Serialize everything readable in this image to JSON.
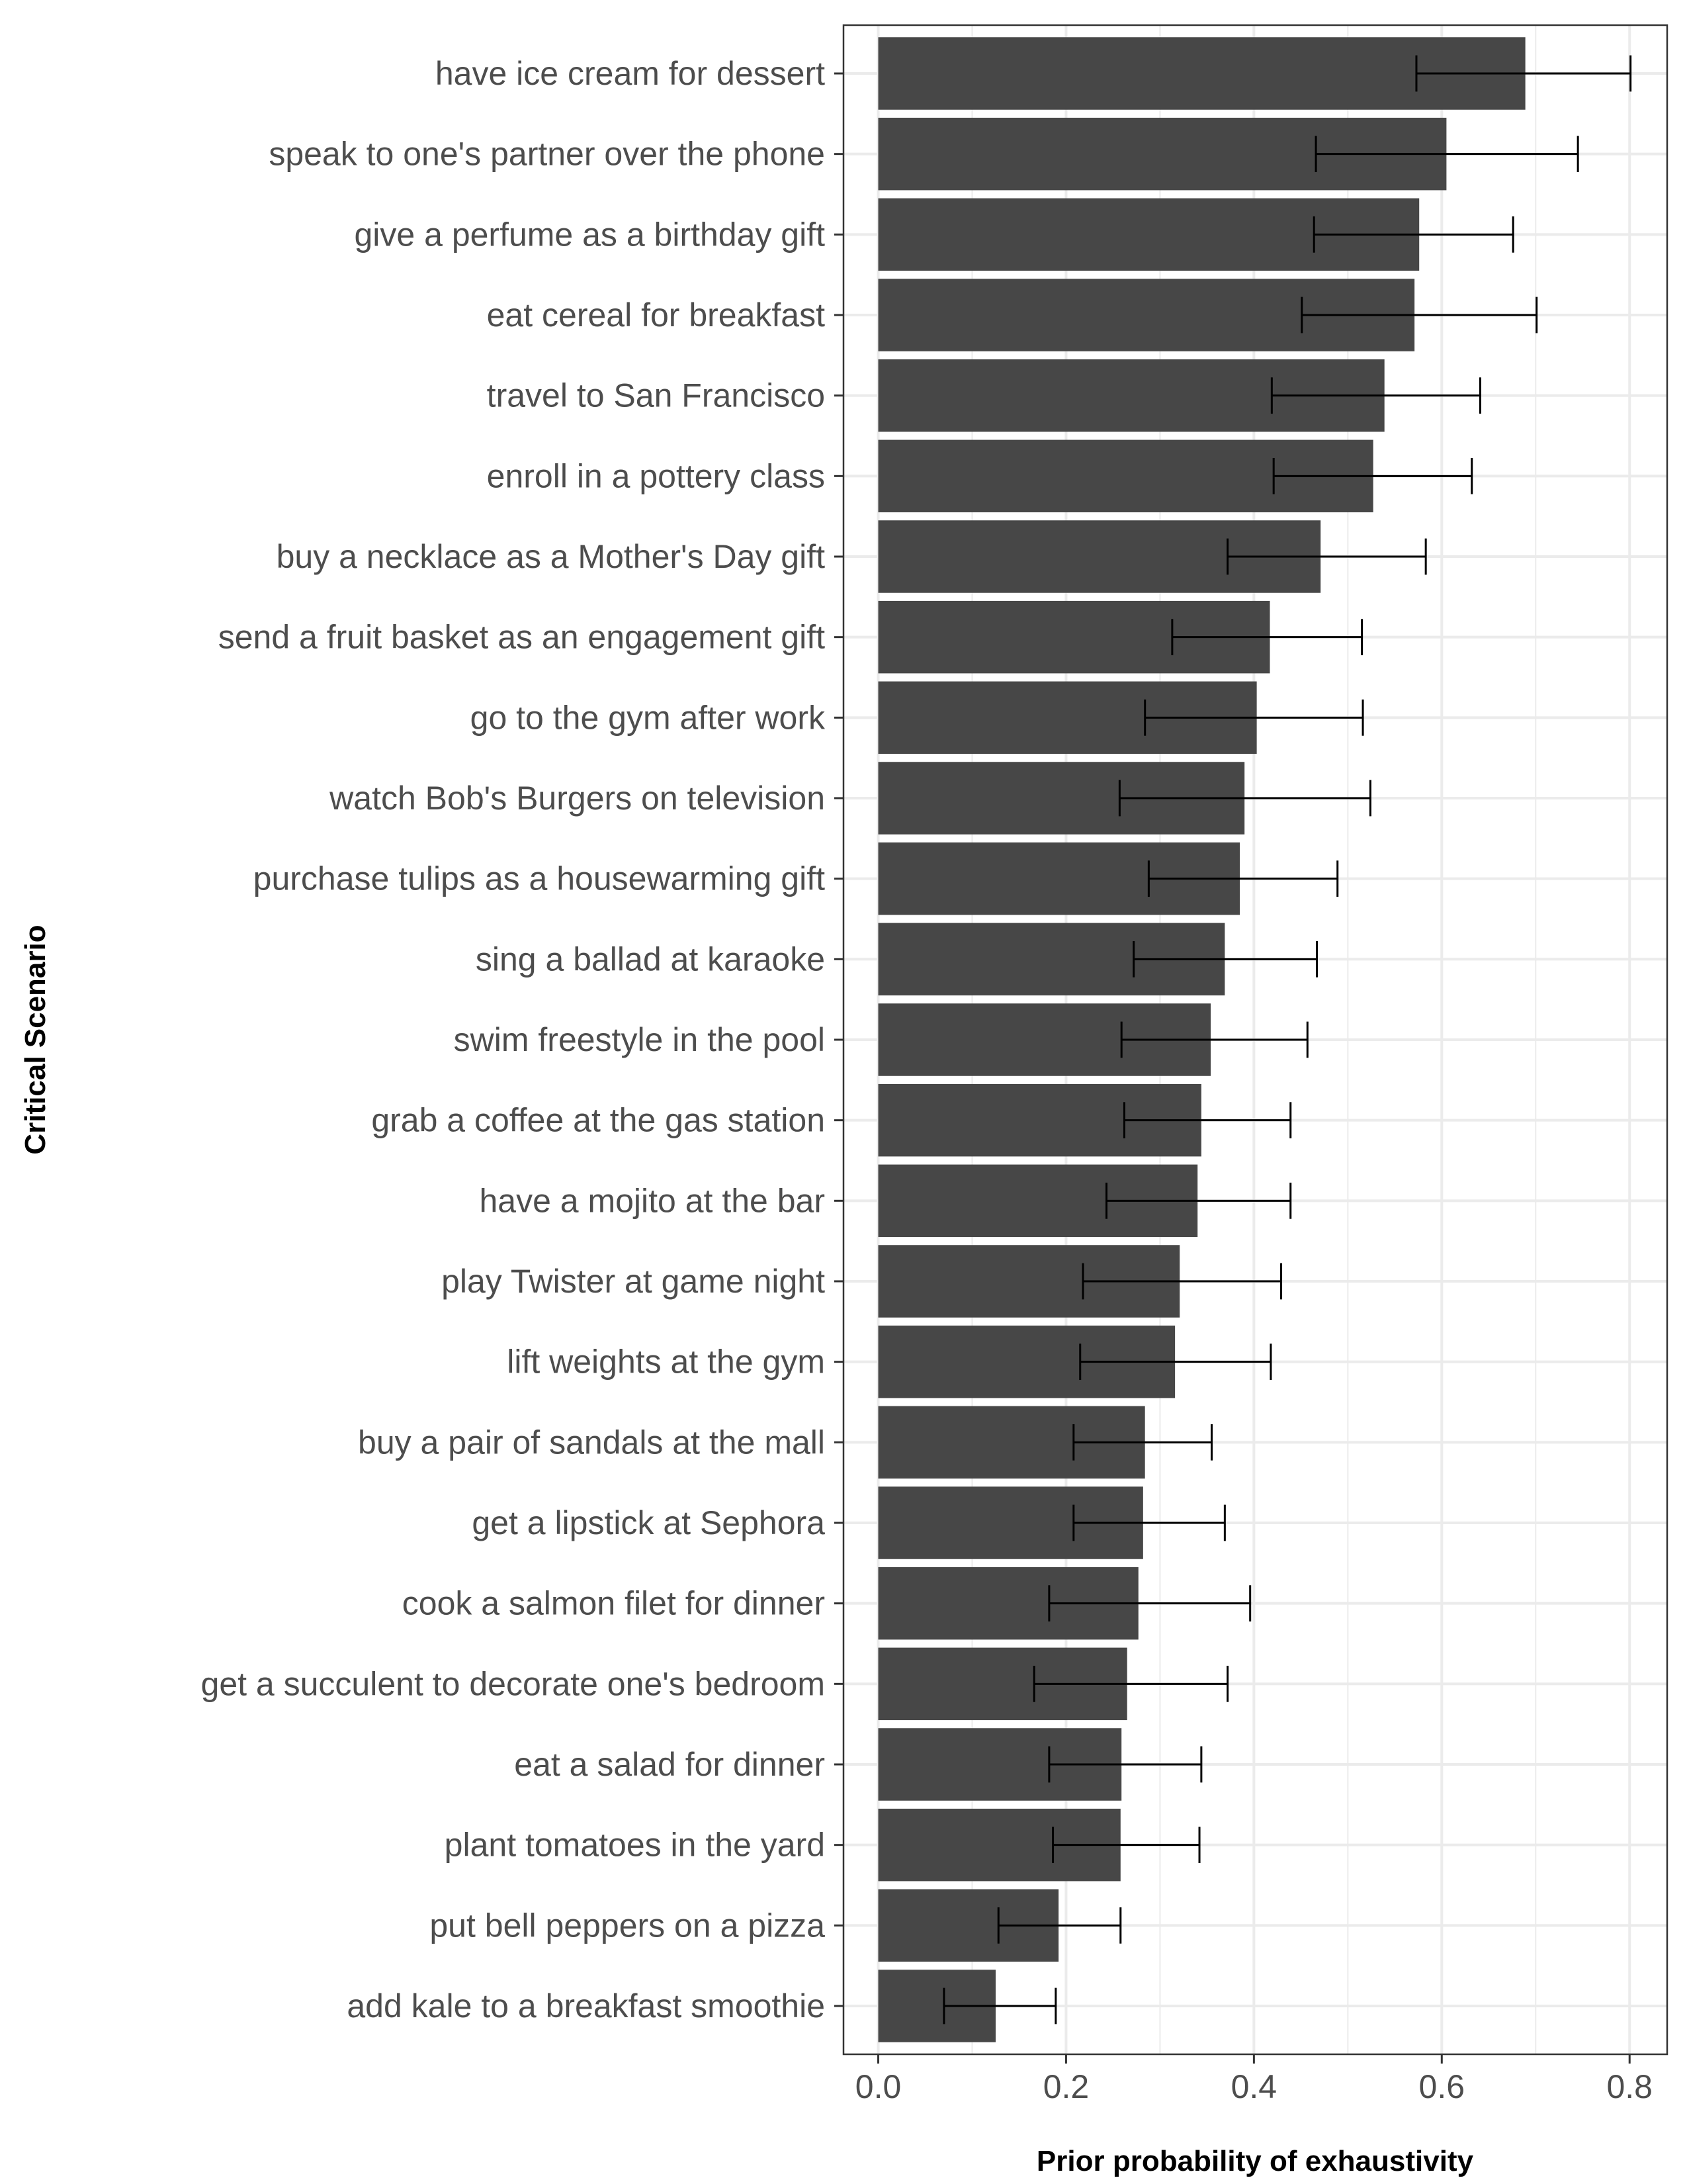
{
  "chart_data": {
    "type": "bar",
    "orientation": "horizontal",
    "xlabel": "Prior probability of exhaustivity",
    "ylabel": "Critical Scenario",
    "xlim": [
      -0.037,
      0.84
    ],
    "x_ticks": [
      0.0,
      0.2,
      0.4,
      0.6,
      0.8
    ],
    "x_tick_labels": [
      "0.0",
      "0.2",
      "0.4",
      "0.6",
      "0.8"
    ],
    "grid": true,
    "legend": "none",
    "bar_color": "#474747",
    "categories": [
      "have ice cream for dessert",
      "speak to one's partner over the phone",
      "give a perfume as a birthday gift",
      "eat cereal for breakfast",
      "travel to San Francisco",
      "enroll in a pottery class",
      "buy a necklace as a Mother's Day gift",
      "send a fruit basket as an engagement gift",
      "go to the gym after work",
      "watch Bob's Burgers on television",
      "purchase tulips as a housewarming gift",
      "sing a ballad at karaoke",
      "swim freestyle in the pool",
      "grab a coffee at the gas station",
      "have a mojito at the bar",
      "play Twister at game night",
      "lift weights at the gym",
      "buy a pair of sandals at the mall",
      "get a lipstick at Sephora",
      "cook a salmon filet for dinner",
      "get a succulent to decorate one's bedroom",
      "eat a salad for dinner",
      "plant tomatoes in the yard",
      "put bell peppers on a pizza",
      "add kale to a breakfast smoothie"
    ],
    "values": [
      0.689,
      0.605,
      0.576,
      0.571,
      0.539,
      0.527,
      0.471,
      0.417,
      0.403,
      0.39,
      0.385,
      0.369,
      0.354,
      0.344,
      0.34,
      0.321,
      0.316,
      0.284,
      0.282,
      0.277,
      0.265,
      0.259,
      0.258,
      0.192,
      0.125
    ],
    "error_low": [
      0.573,
      0.466,
      0.464,
      0.451,
      0.419,
      0.421,
      0.372,
      0.313,
      0.284,
      0.257,
      0.288,
      0.272,
      0.259,
      0.262,
      0.243,
      0.218,
      0.215,
      0.208,
      0.208,
      0.182,
      0.166,
      0.182,
      0.186,
      0.128,
      0.07
    ],
    "error_high": [
      0.801,
      0.745,
      0.676,
      0.701,
      0.641,
      0.632,
      0.583,
      0.515,
      0.516,
      0.524,
      0.489,
      0.467,
      0.457,
      0.439,
      0.439,
      0.429,
      0.418,
      0.355,
      0.369,
      0.396,
      0.372,
      0.344,
      0.342,
      0.258,
      0.189
    ]
  }
}
